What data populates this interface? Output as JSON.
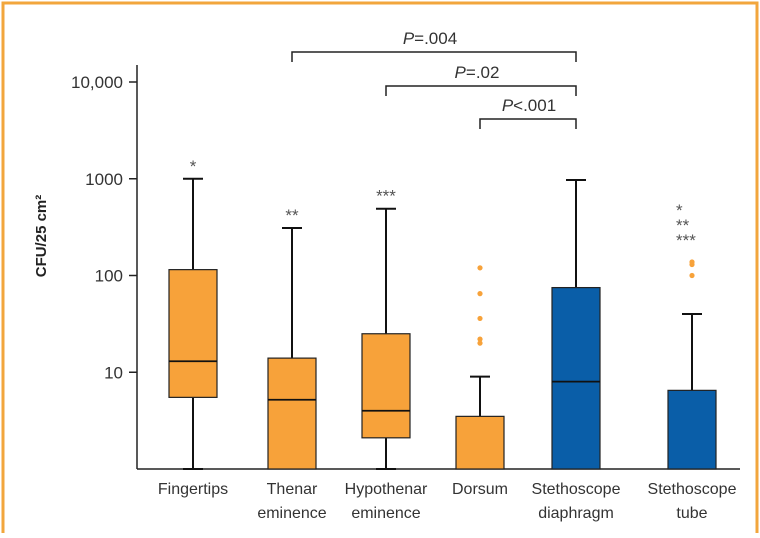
{
  "colors": {
    "frame": "#f2a63c",
    "orange_box": "#f7a23a",
    "blue_box": "#0a5ea8",
    "axis": "#222222",
    "label": "#333333",
    "outlier": "#f7a23a"
  },
  "chart_data": {
    "type": "boxplot",
    "scale": "log",
    "ylabel": "CFU/25 cm²",
    "ylim": [
      1,
      20000
    ],
    "yticks": [
      {
        "value": 10,
        "label": "10"
      },
      {
        "value": 100,
        "label": "100"
      },
      {
        "value": 1000,
        "label": "1000"
      },
      {
        "value": 10000,
        "label": "10,000"
      }
    ],
    "categories": [
      {
        "label": [
          "Fingertips"
        ],
        "color": "orange",
        "min": 1,
        "q1": 5.5,
        "median": 13,
        "q3": 115,
        "max": 1000,
        "outliers": [],
        "marker": "*"
      },
      {
        "label": [
          "Thenar",
          "eminence"
        ],
        "color": "orange",
        "min": 1,
        "q1": 1,
        "median": 5.2,
        "q3": 14,
        "max": 310,
        "outliers": [],
        "marker": "**"
      },
      {
        "label": [
          "Hypothenar",
          "eminence"
        ],
        "color": "orange",
        "min": 1,
        "q1": 2.1,
        "median": 4,
        "q3": 25,
        "max": 490,
        "outliers": [],
        "marker": "***"
      },
      {
        "label": [
          "Dorsum"
        ],
        "color": "orange",
        "min": 1,
        "q1": 1,
        "median": 1,
        "q3": 3.5,
        "max": 9,
        "outliers": [
          20,
          22,
          36,
          65,
          120
        ],
        "marker": ""
      },
      {
        "label": [
          "Stethoscope",
          "diaphragm"
        ],
        "color": "blue",
        "min": 1,
        "q1": 1,
        "median": 8,
        "q3": 75,
        "max": 970,
        "outliers": [],
        "marker": ""
      },
      {
        "label": [
          "Stethoscope",
          "tube"
        ],
        "color": "blue",
        "min": 1,
        "q1": 1,
        "median": 1,
        "q3": 6.5,
        "max": 40,
        "outliers": [
          100,
          130,
          138
        ],
        "marker": [
          "*",
          "**",
          "***"
        ]
      }
    ],
    "comparisons": [
      {
        "from": 1,
        "to": 4,
        "label": "P=.004",
        "italic_part": "P",
        "rest": "=.004"
      },
      {
        "from": 2,
        "to": 4,
        "label": "P=.02",
        "italic_part": "P",
        "rest": "=.02"
      },
      {
        "from": 3,
        "to": 4,
        "label": "P<.001",
        "italic_part": "P",
        "rest": "<.001"
      }
    ]
  }
}
